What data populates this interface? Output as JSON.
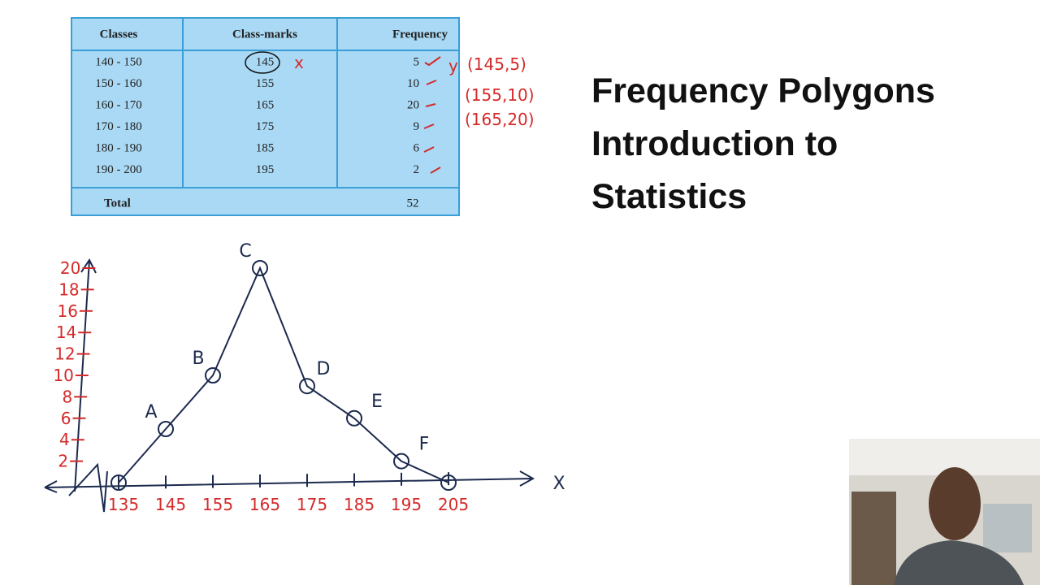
{
  "slide": {
    "title_lines": [
      "Frequency Polygons",
      "Introduction to",
      "Statistics"
    ],
    "table": {
      "headers": [
        "Classes",
        "Class-marks",
        "Frequency"
      ],
      "rows": [
        [
          "140 - 150",
          145,
          5
        ],
        [
          "150 - 160",
          155,
          10
        ],
        [
          "160 - 170",
          165,
          20
        ],
        [
          "170 - 180",
          175,
          9
        ],
        [
          "180 - 190",
          185,
          6
        ],
        [
          "190 - 200",
          195,
          2
        ]
      ],
      "total": [
        "Total",
        52
      ]
    },
    "annotations": {
      "x_note": "x",
      "y_note": "y",
      "pairs": [
        "(145,5)",
        "(155,10)",
        "(165,20)"
      ]
    },
    "graph": {
      "x_axis_label": "X",
      "x_ticks": [
        135,
        145,
        155,
        165,
        175,
        185,
        195,
        205
      ],
      "y_ticks": [
        2,
        4,
        6,
        8,
        10,
        12,
        14,
        16,
        18,
        20
      ],
      "points": {
        "x": [
          135,
          145,
          155,
          165,
          175,
          185,
          195,
          205
        ],
        "y": [
          0,
          5,
          10,
          20,
          9,
          6,
          2,
          0
        ]
      },
      "point_labels": [
        "A",
        "B",
        "C",
        "D",
        "E",
        "F"
      ]
    }
  }
}
